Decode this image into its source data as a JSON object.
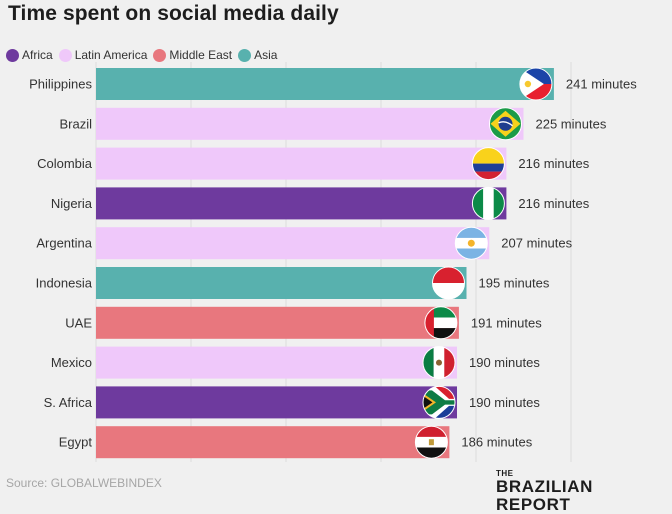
{
  "title": "Time spent on social media daily",
  "legend": [
    {
      "label": "Africa",
      "color": "#6e3a9e"
    },
    {
      "label": "Latin America",
      "color": "#efc8fa"
    },
    {
      "label": "Middle East",
      "color": "#e8777e"
    },
    {
      "label": "Asia",
      "color": "#58b1ae"
    }
  ],
  "chart_data": {
    "type": "bar",
    "orientation": "horizontal",
    "title": "Time spent on social media daily",
    "unit": "minutes",
    "xlim": [
      0,
      250
    ],
    "categories": [
      "Philippines",
      "Brazil",
      "Colombia",
      "Nigeria",
      "Argentina",
      "Indonesia",
      "UAE",
      "Mexico",
      "S. Africa",
      "Egypt"
    ],
    "values": [
      241,
      225,
      216,
      216,
      207,
      195,
      191,
      190,
      190,
      186
    ],
    "value_labels": [
      "241 minutes",
      "225 minutes",
      "216 minutes",
      "216 minutes",
      "207 minutes",
      "195 minutes",
      "191 minutes",
      "190 minutes",
      "190 minutes",
      "186 minutes"
    ],
    "regions": [
      "Asia",
      "Latin America",
      "Latin America",
      "Africa",
      "Latin America",
      "Asia",
      "Middle East",
      "Latin America",
      "Africa",
      "Middle East"
    ],
    "flags": [
      "philippines-flag",
      "brazil-flag",
      "colombia-flag",
      "nigeria-flag",
      "argentina-flag",
      "indonesia-flag",
      "uae-flag",
      "mexico-flag",
      "south-africa-flag",
      "egypt-flag"
    ]
  },
  "footer": {
    "source": "Source: GLOBALWEBINDEX",
    "brand_small": "THE",
    "brand_name": "BRAZILIAN REPORT"
  }
}
